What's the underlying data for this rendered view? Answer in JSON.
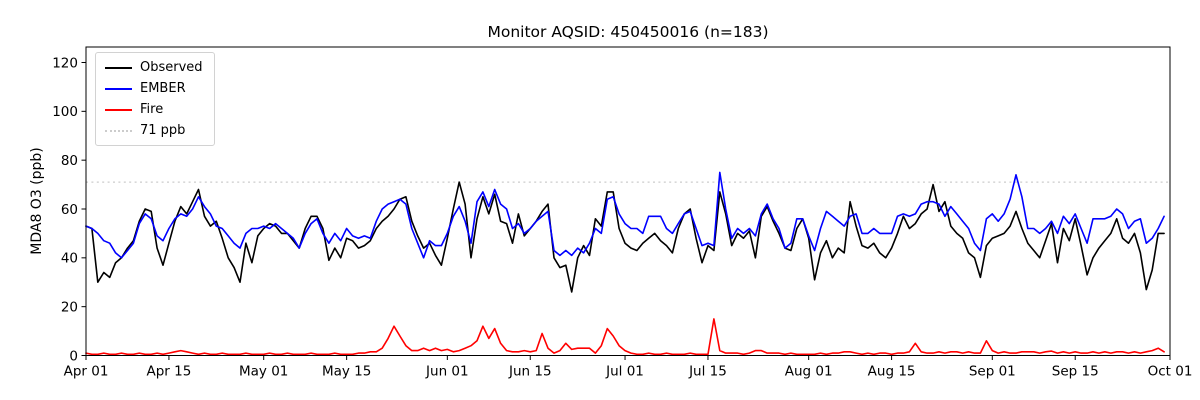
{
  "chart_data": {
    "type": "line",
    "title": "Monitor AQSID: 450450016 (n=183)",
    "xlabel": "",
    "ylabel": "MDA8 O3 (ppb)",
    "n": 183,
    "ylim": [
      0,
      126
    ],
    "yticks": [
      0,
      20,
      40,
      60,
      80,
      100,
      120
    ],
    "grid": false,
    "legend_position": "upper left",
    "x_unit": "daily values from Apr 01 to Sep 30",
    "x_tick_labels": [
      "Apr 01",
      "Apr 15",
      "May 01",
      "May 15",
      "Jun 01",
      "Jun 15",
      "Jul 01",
      "Jul 15",
      "Aug 01",
      "Aug 15",
      "Sep 01",
      "Sep 15",
      "Oct 01"
    ],
    "x_tick_day_index": [
      0,
      14,
      30,
      44,
      61,
      75,
      91,
      105,
      122,
      136,
      153,
      167,
      183
    ],
    "reference_line": {
      "label": "71 ppb",
      "value": 71,
      "color": "#cccccc",
      "style": "dotted"
    },
    "series": [
      {
        "name": "Observed",
        "color": "#000000",
        "values": [
          53,
          52,
          30,
          34,
          32,
          38,
          40,
          44,
          47,
          55,
          60,
          59,
          44,
          37,
          46,
          55,
          61,
          58,
          63,
          68,
          57,
          53,
          55,
          48,
          40,
          36,
          30,
          46,
          38,
          49,
          52,
          54,
          53,
          50,
          50,
          47,
          44,
          52,
          57,
          57,
          52,
          39,
          44,
          40,
          48,
          47,
          44,
          45,
          47,
          52,
          55,
          57,
          60,
          64,
          65,
          55,
          49,
          44,
          46,
          41,
          37,
          48,
          60,
          71,
          62,
          40,
          56,
          65,
          58,
          66,
          55,
          54,
          46,
          58,
          49,
          52,
          55,
          59,
          62,
          40,
          36,
          37,
          26,
          40,
          45,
          41,
          56,
          53,
          67,
          67,
          52,
          46,
          44,
          43,
          46,
          48,
          50,
          47,
          45,
          42,
          52,
          58,
          60,
          48,
          38,
          45,
          43,
          67,
          58,
          45,
          50,
          48,
          51,
          40,
          57,
          61,
          55,
          50,
          44,
          43,
          52,
          56,
          48,
          31,
          42,
          47,
          40,
          44,
          42,
          63,
          53,
          45,
          44,
          46,
          42,
          40,
          44,
          50,
          57,
          52,
          54,
          58,
          60,
          70,
          59,
          63,
          53,
          50,
          48,
          42,
          40,
          32,
          45,
          48,
          49,
          50,
          53,
          59,
          52,
          46,
          43,
          40,
          47,
          54,
          38,
          52,
          47,
          56,
          45,
          33,
          40,
          44,
          47,
          50,
          56,
          48,
          46,
          50,
          42,
          27,
          35,
          50,
          50
        ]
      },
      {
        "name": "EMBER",
        "color": "#0000ff",
        "values": [
          53,
          52,
          50,
          47,
          46,
          42,
          40,
          43,
          46,
          54,
          58,
          56,
          49,
          47,
          52,
          56,
          58,
          57,
          60,
          65,
          61,
          58,
          53,
          52,
          49,
          46,
          44,
          50,
          52,
          52,
          53,
          52,
          54,
          52,
          50,
          48,
          44,
          50,
          54,
          56,
          50,
          46,
          50,
          47,
          52,
          49,
          48,
          49,
          48,
          55,
          60,
          62,
          63,
          64,
          62,
          52,
          46,
          40,
          47,
          45,
          45,
          50,
          57,
          61,
          55,
          46,
          63,
          67,
          61,
          68,
          62,
          60,
          52,
          54,
          50,
          52,
          55,
          57,
          59,
          43,
          41,
          43,
          41,
          44,
          42,
          46,
          52,
          50,
          64,
          65,
          58,
          54,
          52,
          52,
          50,
          57,
          57,
          57,
          52,
          50,
          54,
          58,
          59,
          52,
          45,
          46,
          45,
          75,
          60,
          48,
          52,
          50,
          52,
          49,
          58,
          62,
          56,
          52,
          44,
          46,
          56,
          56,
          49,
          43,
          52,
          59,
          57,
          55,
          53,
          57,
          58,
          50,
          50,
          52,
          50,
          50,
          50,
          57,
          58,
          57,
          58,
          62,
          63,
          63,
          62,
          57,
          61,
          58,
          55,
          52,
          46,
          43,
          56,
          58,
          55,
          58,
          64,
          74,
          65,
          52,
          52,
          50,
          52,
          55,
          50,
          57,
          54,
          58,
          52,
          46,
          56,
          56,
          56,
          57,
          60,
          58,
          52,
          55,
          56,
          46,
          48,
          52,
          57
        ]
      },
      {
        "name": "Fire",
        "color": "#ff0000",
        "values": [
          1,
          0.5,
          0.5,
          1,
          0.5,
          0.5,
          1,
          0.5,
          0.5,
          1,
          0.5,
          0.5,
          1,
          0.5,
          1,
          1.5,
          2,
          1.5,
          1,
          0.5,
          1,
          0.5,
          0.5,
          1,
          0.5,
          0.5,
          0.5,
          1,
          0.5,
          0.5,
          0.5,
          1,
          0.5,
          0.5,
          1,
          0.5,
          0.5,
          0.5,
          1,
          0.5,
          0.5,
          0.5,
          1,
          0.5,
          0.5,
          0.5,
          1,
          1,
          1.5,
          1.5,
          3,
          7,
          12,
          8,
          4,
          2,
          2,
          3,
          2,
          3,
          2,
          2.5,
          1.5,
          2,
          3,
          4,
          6,
          12,
          7,
          11,
          5,
          2,
          1.5,
          1.5,
          2,
          1.5,
          2,
          9,
          3,
          1,
          2,
          5,
          2.5,
          3,
          3,
          3,
          1,
          4,
          11,
          8,
          4,
          2,
          1,
          0.5,
          0.5,
          1,
          0.5,
          0.5,
          1,
          0.5,
          0.5,
          0.5,
          1,
          0.5,
          0.5,
          0.5,
          15,
          2,
          1,
          1,
          1,
          0.5,
          1,
          2,
          2,
          1,
          1,
          1,
          0.5,
          1,
          0.5,
          0.5,
          0.5,
          0.5,
          1,
          0.5,
          1,
          1,
          1.5,
          1.5,
          1,
          0.5,
          1,
          0.5,
          1,
          1,
          0.5,
          1,
          1,
          1.5,
          5,
          1.5,
          1,
          1,
          1.5,
          1,
          1.5,
          1.5,
          1,
          1.5,
          1,
          1,
          6,
          2,
          1,
          1.5,
          1,
          1,
          1.5,
          1.5,
          1.5,
          1,
          1.5,
          1.8,
          1,
          1.5,
          1,
          1.5,
          1,
          1,
          1.5,
          1,
          1.5,
          1,
          1.5,
          1.5,
          1,
          1.5,
          1,
          1.5,
          2,
          3,
          1.5
        ]
      }
    ]
  }
}
